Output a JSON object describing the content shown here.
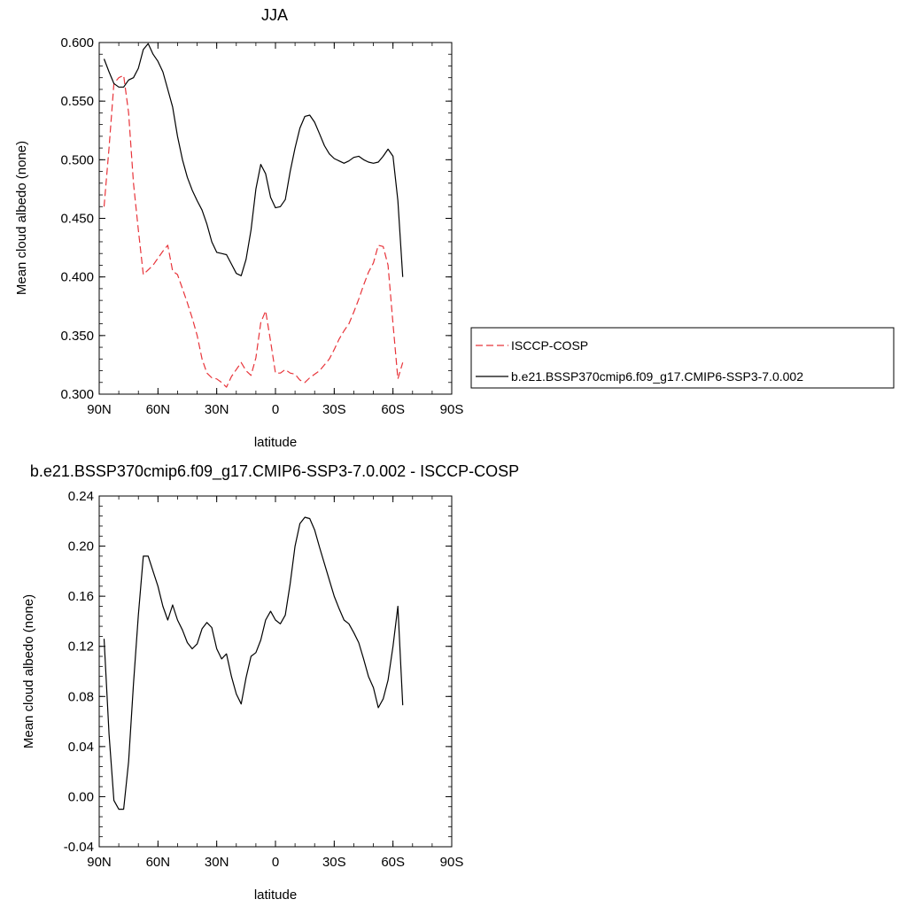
{
  "chart_data": [
    {
      "type": "line",
      "title": "JJA",
      "xlabel": "latitude",
      "ylabel": "Mean cloud albedo (none)",
      "xlim": [
        90,
        -90
      ],
      "ylim": [
        0.3,
        0.6
      ],
      "xticks": [
        90,
        60,
        30,
        0,
        -30,
        -60,
        -90
      ],
      "xtick_labels": [
        "90N",
        "60N",
        "30N",
        "0",
        "30S",
        "60S",
        "90S"
      ],
      "yticks": [
        0.3,
        0.35,
        0.4,
        0.45,
        0.5,
        0.55,
        0.6
      ],
      "ytick_labels": [
        "0.300",
        "0.350",
        "0.400",
        "0.450",
        "0.500",
        "0.550",
        "0.600"
      ],
      "legend": "right",
      "series": [
        {
          "name": "ISCCP-COSP",
          "color": "#e8343a",
          "dash": "dashed",
          "x": [
            87.5,
            85,
            82.5,
            80,
            77.5,
            75,
            72.5,
            70,
            67.5,
            65,
            62.5,
            60,
            57.5,
            55,
            52.5,
            50,
            47.5,
            45,
            42.5,
            40,
            37.5,
            35,
            32.5,
            30,
            27.5,
            25,
            22.5,
            20,
            17.5,
            15,
            12.5,
            10,
            7.5,
            5,
            2.5,
            0,
            -2.5,
            -5,
            -7.5,
            -10,
            -12.5,
            -15,
            -17.5,
            -20,
            -22.5,
            -25,
            -27.5,
            -30,
            -32.5,
            -35,
            -37.5,
            -40,
            -42.5,
            -45,
            -47.5,
            -50,
            -52.5,
            -55,
            -57.5,
            -60,
            -62.5,
            -65
          ],
          "y": [
            0.46,
            0.51,
            0.565,
            0.57,
            0.572,
            0.54,
            0.48,
            0.44,
            0.402,
            0.406,
            0.41,
            0.416,
            0.422,
            0.427,
            0.405,
            0.402,
            0.39,
            0.378,
            0.365,
            0.35,
            0.33,
            0.318,
            0.314,
            0.313,
            0.31,
            0.306,
            0.315,
            0.321,
            0.327,
            0.32,
            0.316,
            0.331,
            0.361,
            0.371,
            0.345,
            0.318,
            0.318,
            0.321,
            0.318,
            0.317,
            0.312,
            0.31,
            0.314,
            0.317,
            0.32,
            0.325,
            0.33,
            0.338,
            0.347,
            0.354,
            0.36,
            0.37,
            0.381,
            0.393,
            0.404,
            0.412,
            0.427,
            0.426,
            0.41,
            0.36,
            0.313,
            0.327
          ]
        },
        {
          "name": "b.e21.BSSP370cmip6.f09_g17.CMIP6-SSP3-7.0.002",
          "color": "#000000",
          "dash": "solid",
          "x": [
            87.5,
            85,
            82.5,
            80,
            77.5,
            75,
            72.5,
            70,
            67.5,
            65,
            62.5,
            60,
            57.5,
            55,
            52.5,
            50,
            47.5,
            45,
            42.5,
            40,
            37.5,
            35,
            32.5,
            30,
            27.5,
            25,
            22.5,
            20,
            17.5,
            15,
            12.5,
            10,
            7.5,
            5,
            2.5,
            0,
            -2.5,
            -5,
            -7.5,
            -10,
            -12.5,
            -15,
            -17.5,
            -20,
            -22.5,
            -25,
            -27.5,
            -30,
            -32.5,
            -35,
            -37.5,
            -40,
            -42.5,
            -45,
            -47.5,
            -50,
            -52.5,
            -55,
            -57.5,
            -60,
            -62.5,
            -65
          ],
          "y": [
            0.586,
            0.575,
            0.565,
            0.562,
            0.562,
            0.568,
            0.57,
            0.578,
            0.594,
            0.599,
            0.59,
            0.584,
            0.575,
            0.56,
            0.545,
            0.52,
            0.5,
            0.485,
            0.474,
            0.465,
            0.457,
            0.445,
            0.43,
            0.421,
            0.42,
            0.419,
            0.411,
            0.403,
            0.401,
            0.415,
            0.44,
            0.475,
            0.496,
            0.488,
            0.468,
            0.459,
            0.46,
            0.466,
            0.49,
            0.51,
            0.527,
            0.537,
            0.538,
            0.532,
            0.522,
            0.512,
            0.505,
            0.501,
            0.499,
            0.497,
            0.499,
            0.502,
            0.503,
            0.5,
            0.498,
            0.497,
            0.498,
            0.503,
            0.509,
            0.503,
            0.465,
            0.4
          ]
        }
      ]
    },
    {
      "type": "line",
      "title": "b.e21.BSSP370cmip6.f09_g17.CMIP6-SSP3-7.0.002 - ISCCP-COSP",
      "xlabel": "latitude",
      "ylabel": "Mean cloud albedo (none)",
      "xlim": [
        90,
        -90
      ],
      "ylim": [
        -0.04,
        0.24
      ],
      "xticks": [
        90,
        60,
        30,
        0,
        -30,
        -60,
        -90
      ],
      "xtick_labels": [
        "90N",
        "60N",
        "30N",
        "0",
        "30S",
        "60S",
        "90S"
      ],
      "yticks": [
        -0.04,
        0,
        0.04,
        0.08,
        0.12,
        0.16,
        0.2,
        0.24
      ],
      "ytick_labels": [
        "-0.04",
        "0.00",
        "0.04",
        "0.08",
        "0.12",
        "0.16",
        "0.20",
        "0.24"
      ],
      "series": [
        {
          "color": "#000000",
          "dash": "solid",
          "x": [
            87.5,
            85,
            82.5,
            80,
            77.5,
            75,
            72.5,
            70,
            67.5,
            65,
            62.5,
            60,
            57.5,
            55,
            52.5,
            50,
            47.5,
            45,
            42.5,
            40,
            37.5,
            35,
            32.5,
            30,
            27.5,
            25,
            22.5,
            20,
            17.5,
            15,
            12.5,
            10,
            7.5,
            5,
            2.5,
            0,
            -2.5,
            -5,
            -7.5,
            -10,
            -12.5,
            -15,
            -17.5,
            -20,
            -22.5,
            -25,
            -27.5,
            -30,
            -32.5,
            -35,
            -37.5,
            -40,
            -42.5,
            -45,
            -47.5,
            -50,
            -52.5,
            -55,
            -57.5,
            -60,
            -62.5,
            -65
          ],
          "y": [
            0.126,
            0.05,
            -0.003,
            -0.01,
            -0.01,
            0.028,
            0.09,
            0.145,
            0.192,
            0.192,
            0.18,
            0.168,
            0.152,
            0.141,
            0.153,
            0.141,
            0.133,
            0.123,
            0.118,
            0.122,
            0.134,
            0.139,
            0.135,
            0.118,
            0.11,
            0.114,
            0.096,
            0.082,
            0.074,
            0.095,
            0.112,
            0.115,
            0.125,
            0.141,
            0.148,
            0.141,
            0.138,
            0.145,
            0.17,
            0.2,
            0.218,
            0.223,
            0.222,
            0.213,
            0.199,
            0.186,
            0.173,
            0.16,
            0.15,
            0.141,
            0.138,
            0.131,
            0.123,
            0.11,
            0.096,
            0.087,
            0.071,
            0.078,
            0.093,
            0.12,
            0.152,
            0.073
          ]
        }
      ]
    }
  ]
}
